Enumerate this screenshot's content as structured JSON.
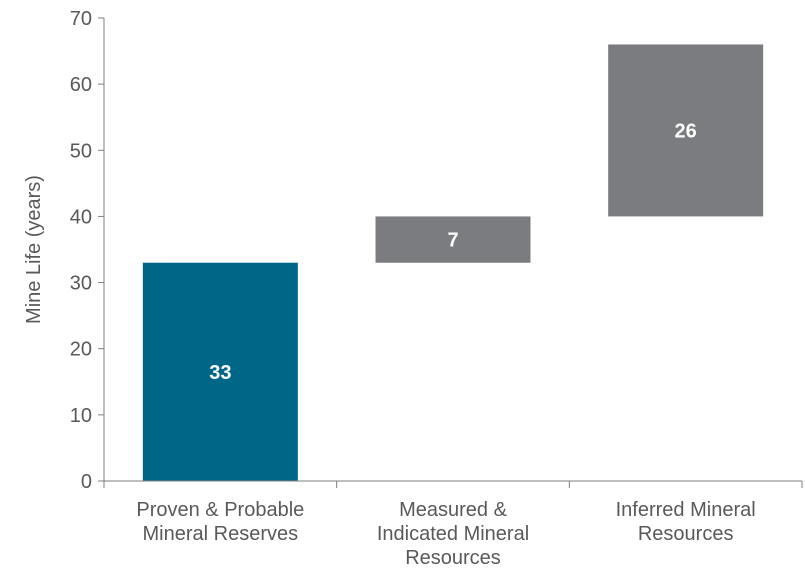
{
  "chart_data": {
    "type": "bar",
    "subtype": "waterfall",
    "categories": [
      [
        "Proven & Probable",
        "Mineral Reserves"
      ],
      [
        "Measured &",
        "Indicated Mineral",
        "Resources"
      ],
      [
        "Inferred Mineral",
        "Resources"
      ]
    ],
    "bars": [
      {
        "base": 0,
        "value": 33,
        "label": "33",
        "color": "#006687"
      },
      {
        "base": 33,
        "value": 7,
        "label": "7",
        "color": "#7b7c7f"
      },
      {
        "base": 40,
        "value": 26,
        "label": "26",
        "color": "#7b7c7f"
      }
    ],
    "ylabel": "Mine Life (years)",
    "ylim": [
      0,
      70
    ],
    "yticks": [
      "0",
      "10",
      "20",
      "30",
      "40",
      "50",
      "60",
      "70"
    ],
    "grid": false,
    "legend": "none"
  }
}
